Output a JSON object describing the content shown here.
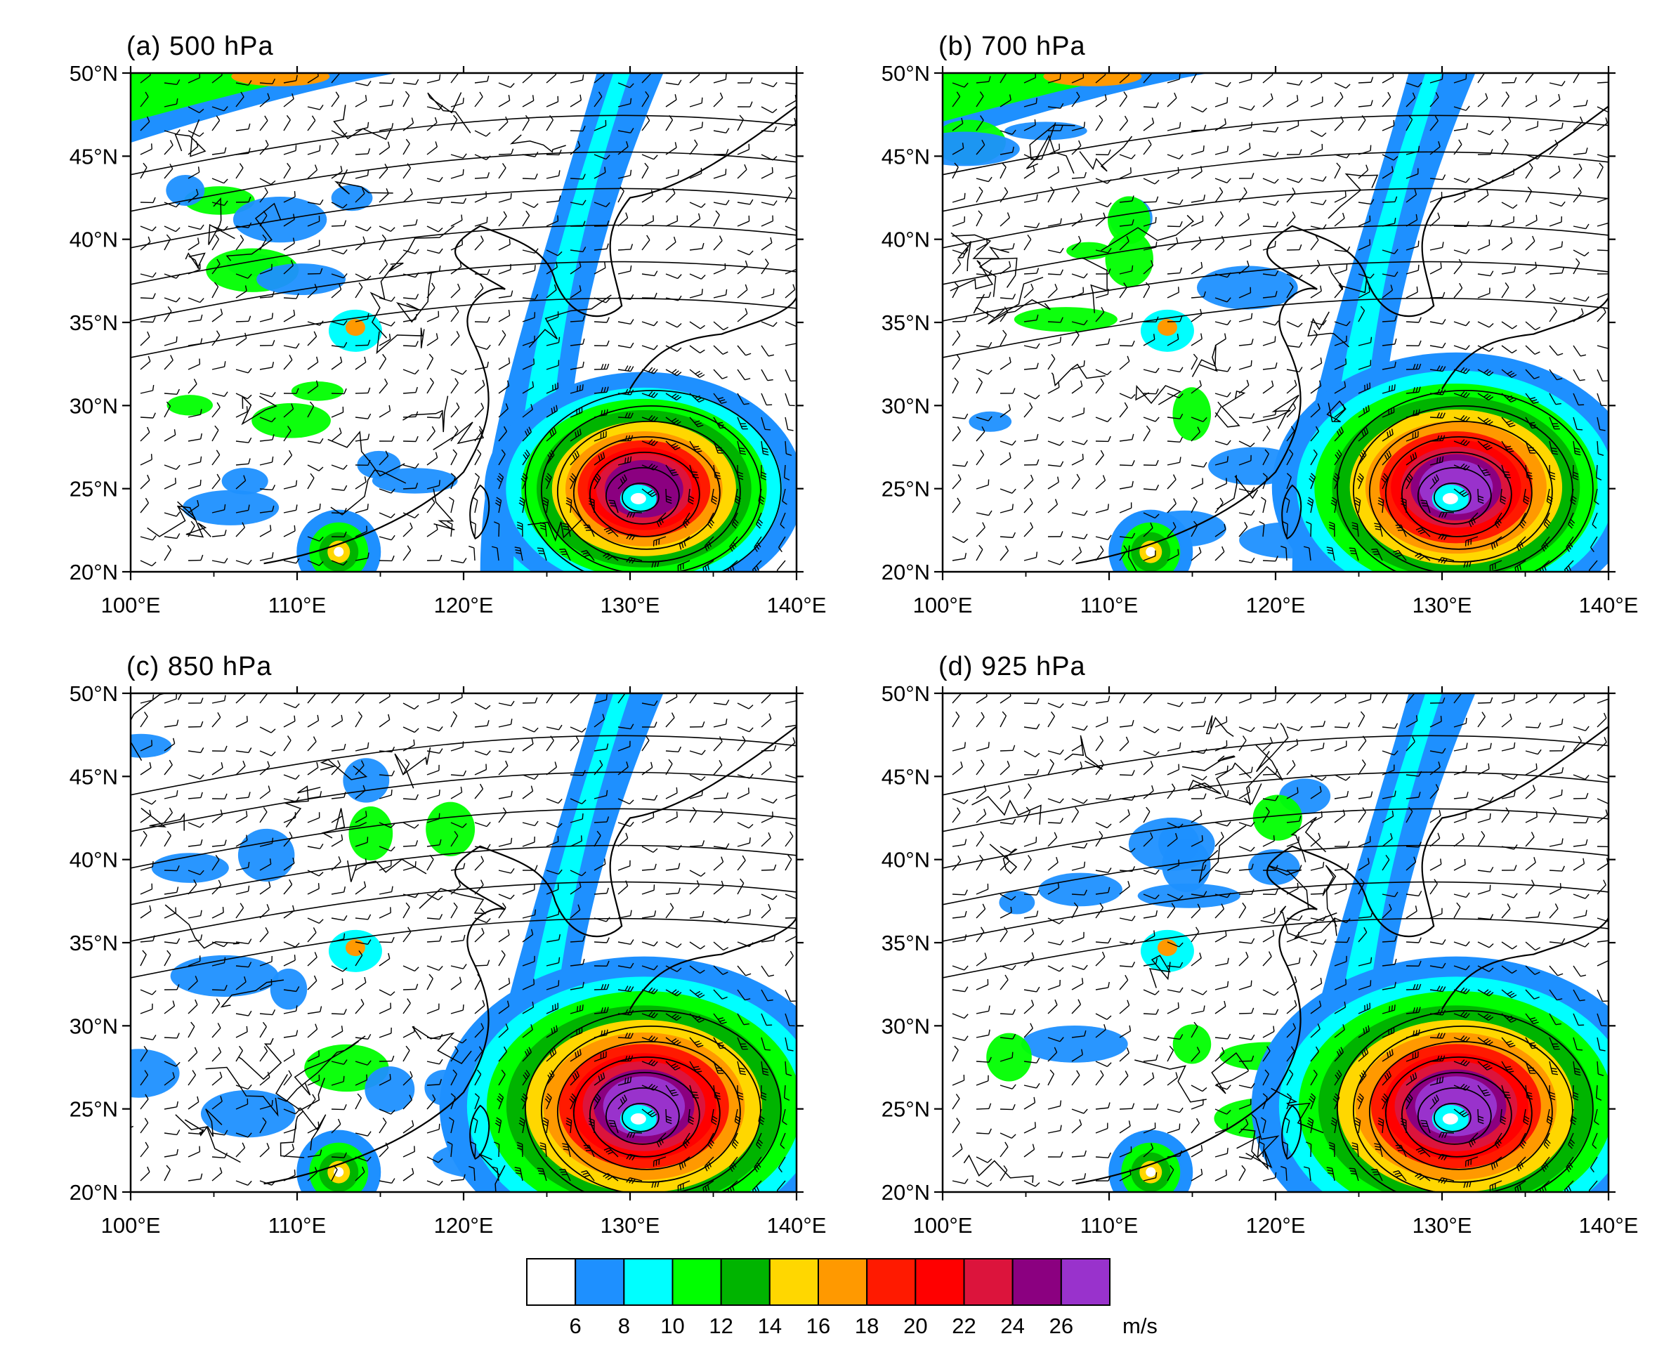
{
  "figure": {
    "panels": [
      {
        "id": "a",
        "title": "(a)  500 hPa",
        "level": 500
      },
      {
        "id": "b",
        "title": "(b)  700 hPa",
        "level": 700
      },
      {
        "id": "c",
        "title": "(c)  850 hPa",
        "level": 850
      },
      {
        "id": "d",
        "title": "(d)  925 hPa",
        "level": 925
      }
    ],
    "lon_ticks": [
      "100°E",
      "110°E",
      "120°E",
      "130°E",
      "140°E"
    ],
    "lat_ticks": [
      "50°N",
      "45°N",
      "40°N",
      "35°N",
      "30°N",
      "25°N",
      "20°N"
    ],
    "extent": {
      "lon": [
        100,
        140
      ],
      "lat": [
        20,
        50
      ]
    },
    "typhoon_center": {
      "lon": 130.5,
      "lat": 24.4
    },
    "secondary_vortex": {
      "lon": 112.5,
      "lat": 21.2
    }
  },
  "colorbar": {
    "levels": [
      "6",
      "8",
      "10",
      "12",
      "14",
      "16",
      "18",
      "20",
      "22",
      "24",
      "26"
    ],
    "unit": "m/s",
    "colors": [
      "#ffffff",
      "#1e90ff",
      "#00ffff",
      "#00ff00",
      "#00b400",
      "#ffd700",
      "#ff9900",
      "#ff1a00",
      "#ff0000",
      "#dc143c",
      "#8b0080",
      "#9932cc"
    ]
  }
}
